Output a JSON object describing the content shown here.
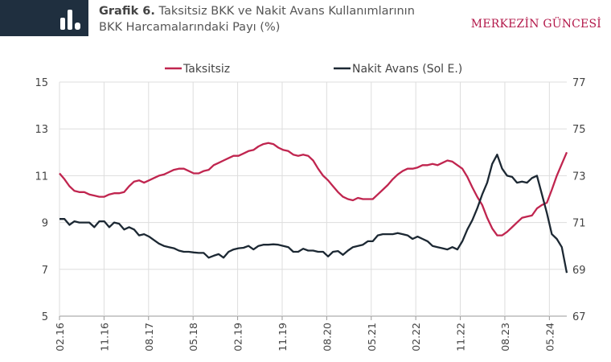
{
  "header": {
    "title_bold": "Grafik 6.",
    "title_line1": "Taksitsiz BKK ve Nakit Avans Kullanımlarının",
    "title_line2": "BKK Harcamalarındaki Payı (%)",
    "brand": "MERKEZİN GÜNCESİ",
    "logo_icon": "bar-chart-icon"
  },
  "chart_data": {
    "type": "line",
    "title": "Taksitsiz BKK ve Nakit Avans Kullanımlarının BKK Harcamalarındaki Payı (%)",
    "legend_position": "top",
    "grid": true,
    "y_left": {
      "range": [
        5,
        15
      ],
      "ticks": [
        "5",
        "7",
        "9",
        "11",
        "13",
        "15"
      ]
    },
    "y_right": {
      "range": [
        67,
        77
      ],
      "ticks": [
        "67",
        "69",
        "71",
        "73",
        "75",
        "77"
      ]
    },
    "x_ticks": [
      "02.16",
      "11.16",
      "08.17",
      "05.18",
      "02.19",
      "11.19",
      "08.20",
      "05.21",
      "02.22",
      "11.22",
      "08.23",
      "05.24"
    ],
    "x": [
      "02.16",
      "03.16",
      "04.16",
      "05.16",
      "06.16",
      "07.16",
      "08.16",
      "09.16",
      "10.16",
      "11.16",
      "12.16",
      "01.17",
      "02.17",
      "03.17",
      "04.17",
      "05.17",
      "06.17",
      "07.17",
      "08.17",
      "09.17",
      "10.17",
      "11.17",
      "12.17",
      "01.18",
      "02.18",
      "03.18",
      "04.18",
      "05.18",
      "06.18",
      "07.18",
      "08.18",
      "09.18",
      "10.18",
      "11.18",
      "12.18",
      "01.19",
      "02.19",
      "03.19",
      "04.19",
      "05.19",
      "06.19",
      "07.19",
      "08.19",
      "09.19",
      "10.19",
      "11.19",
      "12.19",
      "01.20",
      "02.20",
      "03.20",
      "04.20",
      "05.20",
      "06.20",
      "07.20",
      "08.20",
      "09.20",
      "10.20",
      "11.20",
      "12.20",
      "01.21",
      "02.21",
      "03.21",
      "04.21",
      "05.21",
      "06.21",
      "07.21",
      "08.21",
      "09.21",
      "10.21",
      "11.21",
      "12.21",
      "01.22",
      "02.22",
      "03.22",
      "04.22",
      "05.22",
      "06.22",
      "07.22",
      "08.22",
      "09.22",
      "10.22",
      "11.22",
      "12.22",
      "01.23",
      "02.23",
      "03.23",
      "04.23",
      "05.23",
      "06.23",
      "07.23",
      "08.23",
      "09.23",
      "10.23",
      "11.23",
      "12.23",
      "01.24",
      "02.24",
      "03.24",
      "04.24",
      "05.24",
      "06.24",
      "07.24",
      "08.24"
    ],
    "series": [
      {
        "name": "Taksitsiz",
        "axis": "right",
        "color": "#c0254f",
        "values": [
          73.1,
          72.85,
          72.55,
          72.35,
          72.3,
          72.3,
          72.2,
          72.15,
          72.1,
          72.1,
          72.2,
          72.25,
          72.25,
          72.3,
          72.55,
          72.75,
          72.8,
          72.7,
          72.8,
          72.9,
          73.0,
          73.05,
          73.15,
          73.25,
          73.3,
          73.3,
          73.2,
          73.1,
          73.1,
          73.2,
          73.25,
          73.45,
          73.55,
          73.65,
          73.75,
          73.85,
          73.85,
          73.95,
          74.05,
          74.1,
          74.25,
          74.35,
          74.4,
          74.35,
          74.2,
          74.1,
          74.05,
          73.9,
          73.85,
          73.9,
          73.85,
          73.65,
          73.3,
          73.0,
          72.8,
          72.55,
          72.3,
          72.1,
          72.0,
          71.95,
          72.05,
          72.0,
          72.0,
          72.0,
          72.2,
          72.4,
          72.6,
          72.85,
          73.05,
          73.2,
          73.3,
          73.3,
          73.35,
          73.45,
          73.45,
          73.5,
          73.45,
          73.55,
          73.65,
          73.6,
          73.45,
          73.3,
          72.95,
          72.5,
          72.1,
          71.75,
          71.2,
          70.75,
          70.45,
          70.45,
          70.6,
          70.8,
          71.0,
          71.2,
          71.25,
          71.3,
          71.6,
          71.75,
          71.85,
          72.4,
          73.0,
          73.5,
          74.0
        ]
      },
      {
        "name": "Nakit Avans (Sol E.)",
        "axis": "left",
        "color": "#1c2833",
        "values": [
          9.15,
          9.15,
          8.9,
          9.05,
          9.0,
          9.0,
          9.0,
          8.8,
          9.05,
          9.05,
          8.8,
          9.0,
          8.95,
          8.7,
          8.8,
          8.7,
          8.45,
          8.5,
          8.4,
          8.25,
          8.1,
          8.0,
          7.95,
          7.9,
          7.8,
          7.75,
          7.75,
          7.72,
          7.7,
          7.7,
          7.5,
          7.58,
          7.65,
          7.5,
          7.75,
          7.85,
          7.9,
          7.92,
          8.0,
          7.85,
          8.0,
          8.05,
          8.05,
          8.07,
          8.05,
          8.0,
          7.95,
          7.75,
          7.75,
          7.88,
          7.8,
          7.8,
          7.75,
          7.75,
          7.55,
          7.75,
          7.78,
          7.62,
          7.8,
          7.95,
          8.0,
          8.05,
          8.2,
          8.2,
          8.45,
          8.5,
          8.5,
          8.5,
          8.55,
          8.5,
          8.45,
          8.3,
          8.4,
          8.3,
          8.2,
          8.0,
          7.95,
          7.9,
          7.85,
          7.95,
          7.85,
          8.2,
          8.7,
          9.1,
          9.6,
          10.2,
          10.7,
          11.5,
          11.9,
          11.3,
          11.0,
          10.95,
          10.7,
          10.75,
          10.7,
          10.9,
          11.0,
          10.2,
          9.4,
          8.5,
          8.3,
          7.95,
          6.85
        ]
      }
    ]
  }
}
